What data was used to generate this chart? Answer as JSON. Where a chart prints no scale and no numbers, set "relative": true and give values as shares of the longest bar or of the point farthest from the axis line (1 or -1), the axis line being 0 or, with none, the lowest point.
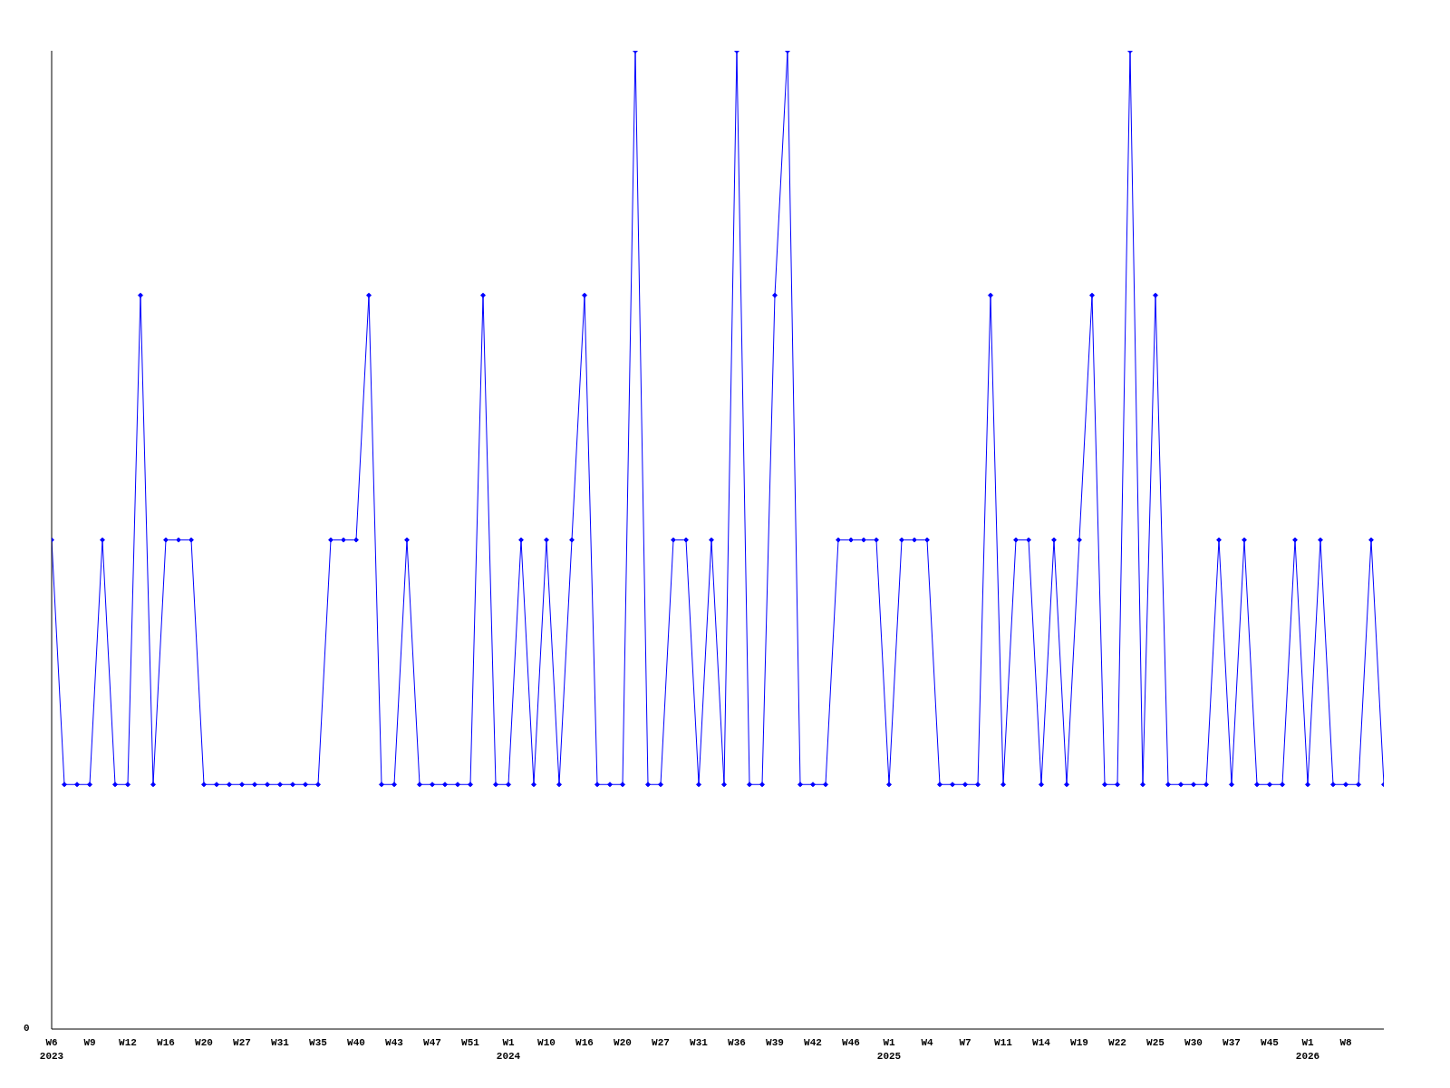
{
  "chart_data": {
    "type": "line",
    "relative": true,
    "annotations": [
      "0"
    ],
    "marker": "diamond",
    "line_style": "solid",
    "grid": false,
    "legend": false,
    "categories": [
      "W6\n2023",
      null,
      null,
      "W9",
      null,
      null,
      "W12",
      null,
      null,
      "W16",
      null,
      null,
      "W20",
      null,
      null,
      "W27",
      null,
      null,
      "W31",
      null,
      null,
      "W35",
      null,
      null,
      "W40",
      null,
      null,
      "W43",
      null,
      null,
      "W47",
      null,
      null,
      "W51",
      null,
      null,
      "W1\n2024",
      null,
      null,
      "W10",
      null,
      null,
      "W16",
      null,
      null,
      "W20",
      null,
      null,
      "W27",
      null,
      null,
      "W31",
      null,
      null,
      "W36",
      null,
      null,
      "W39",
      null,
      null,
      "W42",
      null,
      null,
      "W46",
      null,
      null,
      "W1\n2025",
      null,
      null,
      "W4",
      null,
      null,
      "W7",
      null,
      null,
      "W11",
      null,
      null,
      "W14",
      null,
      null,
      "W19",
      null,
      null,
      "W22",
      null,
      null,
      "W25",
      null,
      null,
      "W30",
      null,
      null,
      "W37",
      null,
      null,
      "W45",
      null,
      null,
      "W1\n2026",
      null,
      null,
      "W8",
      null,
      null,
      null
    ],
    "series": [
      {
        "color": "#0000ff",
        "values": [
          0.5,
          0.25,
          0.25,
          0.25,
          0.5,
          0.25,
          0.25,
          0.75,
          0.25,
          0.5,
          0.5,
          0.5,
          0.25,
          0.25,
          0.25,
          0.25,
          0.25,
          0.25,
          0.25,
          0.25,
          0.25,
          0.25,
          0.5,
          0.5,
          0.5,
          0.75,
          0.25,
          0.25,
          0.5,
          0.25,
          0.25,
          0.25,
          0.25,
          0.25,
          0.75,
          0.25,
          0.25,
          0.5,
          0.25,
          0.5,
          0.25,
          0.5,
          0.75,
          0.25,
          0.25,
          0.25,
          1,
          0.25,
          0.25,
          0.5,
          0.5,
          0.25,
          0.5,
          0.25,
          1,
          0.25,
          0.25,
          0.75,
          1,
          0.25,
          0.25,
          0.25,
          0.5,
          0.5,
          0.5,
          0.5,
          0.25,
          0.5,
          0.5,
          0.5,
          0.25,
          0.25,
          0.25,
          0.25,
          0.75,
          0.25,
          0.5,
          0.5,
          0.25,
          0.5,
          0.25,
          0.5,
          0.75,
          0.25,
          0.25,
          1,
          0.25,
          0.75,
          0.25,
          0.25,
          0.25,
          0.25,
          0.5,
          0.25,
          0.5,
          0.25,
          0.25,
          0.25,
          0.5,
          0.25,
          0.5,
          0.25,
          0.25,
          0.25,
          0.5,
          0.25
        ]
      }
    ]
  }
}
